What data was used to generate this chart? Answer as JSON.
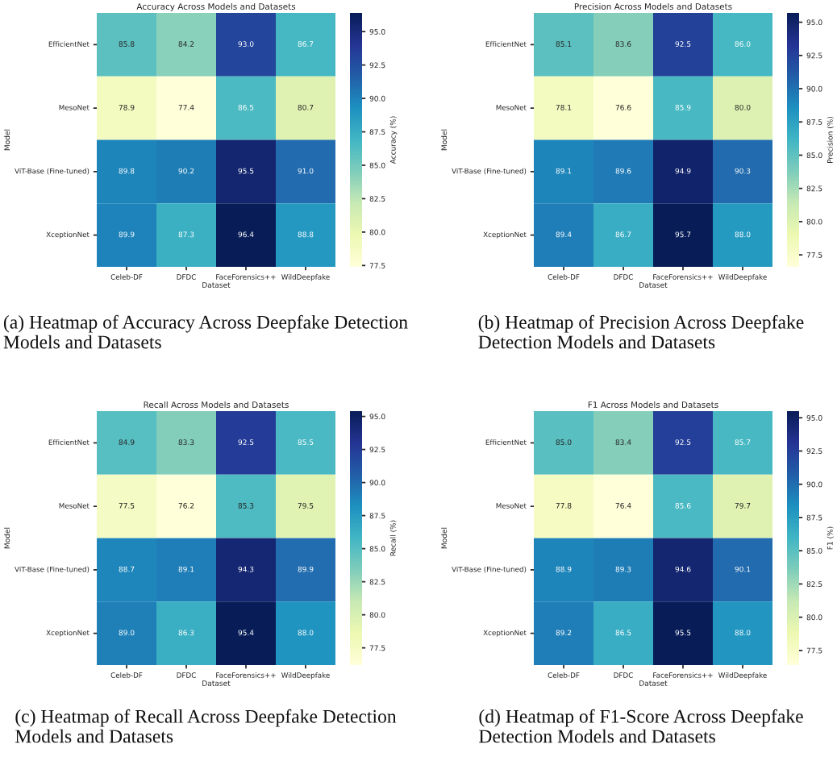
{
  "chart_data": [
    {
      "type": "heatmap",
      "title": "Accuracy Across Models and Datasets",
      "xlabel": "Dataset",
      "ylabel": "Model",
      "clabel": "Accuracy (%)",
      "categories": [
        "Celeb-DF",
        "DFDC",
        "FaceForensics++",
        "WildDeepfake"
      ],
      "y_categories": [
        "EfficientNet",
        "MesoNet",
        "ViT-Base (Fine-tuned)",
        "XceptionNet"
      ],
      "cells": [
        [
          85.8,
          84.2,
          93.0,
          86.7
        ],
        [
          78.9,
          77.4,
          86.5,
          80.7
        ],
        [
          89.8,
          90.2,
          95.5,
          91.0
        ],
        [
          89.9,
          87.3,
          96.4,
          88.8
        ]
      ],
      "cell_labels": [
        [
          "85.8",
          "84.2",
          "93.0",
          "86.7"
        ],
        [
          "78.9",
          "77.4",
          "86.5",
          "80.7"
        ],
        [
          "89.8",
          "90.2",
          "95.5",
          "91.0"
        ],
        [
          "89.9",
          "87.3",
          "96.4",
          "88.8"
        ]
      ],
      "clim": [
        77.4,
        96.4
      ],
      "cticks": [
        77.5,
        {
          "value": 80,
          "label": "80.0"
        },
        82.5,
        {
          "value": 85,
          "label": "85.0"
        },
        87.5,
        {
          "value": 90,
          "label": "90.0"
        },
        92.5,
        {
          "value": 95,
          "label": "95.0"
        }
      ],
      "data_labels": true,
      "annotations": [
        "(a) Heatmap of Accuracy Across Deepfake Detection Models and Datasets"
      ]
    },
    {
      "type": "heatmap",
      "title": "Precision Across Models and Datasets",
      "xlabel": "Dataset",
      "ylabel": "Model",
      "clabel": "Precision (%)",
      "categories": [
        "Celeb-DF",
        "DFDC",
        "FaceForensics++",
        "WildDeepfake"
      ],
      "y_categories": [
        "EfficientNet",
        "MesoNet",
        "ViT-Base (Fine-tuned)",
        "XceptionNet"
      ],
      "cells": [
        [
          85.1,
          83.6,
          92.5,
          86.0
        ],
        [
          78.1,
          76.6,
          85.9,
          80.0
        ],
        [
          89.1,
          89.6,
          94.9,
          90.3
        ],
        [
          89.4,
          86.7,
          95.7,
          88.0
        ]
      ],
      "cell_labels": [
        [
          "85.1",
          "83.6",
          "92.5",
          "86.0"
        ],
        [
          "78.1",
          "76.6",
          "85.9",
          "80.0"
        ],
        [
          "89.1",
          "89.6",
          "94.9",
          "90.3"
        ],
        [
          "89.4",
          "86.7",
          "95.7",
          "88.0"
        ]
      ],
      "clim": [
        76.6,
        95.7
      ],
      "cticks": [
        77.5,
        {
          "value": 80,
          "label": "80.0"
        },
        82.5,
        {
          "value": 85,
          "label": "85.0"
        },
        87.5,
        {
          "value": 90,
          "label": "90.0"
        },
        92.5,
        {
          "value": 95,
          "label": "95.0"
        }
      ],
      "data_labels": true,
      "annotations": [
        "(b) Heatmap of Precision Across Deepfake Detection Models and Datasets"
      ]
    },
    {
      "type": "heatmap",
      "title": "Recall Across Models and Datasets",
      "xlabel": "Dataset",
      "ylabel": "Model",
      "clabel": "Recall (%)",
      "categories": [
        "Celeb-DF",
        "DFDC",
        "FaceForensics++",
        "WildDeepfake"
      ],
      "y_categories": [
        "EfficientNet",
        "MesoNet",
        "ViT-Base (Fine-tuned)",
        "XceptionNet"
      ],
      "cells": [
        [
          84.9,
          83.3,
          92.5,
          85.5
        ],
        [
          77.5,
          76.2,
          85.3,
          79.5
        ],
        [
          88.7,
          89.1,
          94.3,
          89.9
        ],
        [
          89.0,
          86.3,
          95.4,
          88.0
        ]
      ],
      "cell_labels": [
        [
          "84.9",
          "83.3",
          "92.5",
          "85.5"
        ],
        [
          "77.5",
          "76.2",
          "85.3",
          "79.5"
        ],
        [
          "88.7",
          "89.1",
          "94.3",
          "89.9"
        ],
        [
          "89.0",
          "86.3",
          "95.4",
          "88.0"
        ]
      ],
      "clim": [
        76.2,
        95.4
      ],
      "cticks": [
        77.5,
        {
          "value": 80,
          "label": "80.0"
        },
        82.5,
        {
          "value": 85,
          "label": "85.0"
        },
        87.5,
        {
          "value": 90,
          "label": "90.0"
        },
        92.5,
        {
          "value": 95,
          "label": "95.0"
        }
      ],
      "data_labels": true,
      "annotations": [
        "(c) Heatmap of Recall Across Deepfake Detection Models and Datasets"
      ]
    },
    {
      "type": "heatmap",
      "title": "F1 Across Models and Datasets",
      "xlabel": "Dataset",
      "ylabel": "Model",
      "clabel": "F1 (%)",
      "categories": [
        "Celeb-DF",
        "DFDC",
        "FaceForensics++",
        "WildDeepfake"
      ],
      "y_categories": [
        "EfficientNet",
        "MesoNet",
        "ViT-Base (Fine-tuned)",
        "XceptionNet"
      ],
      "cells": [
        [
          85.0,
          83.4,
          92.5,
          85.7
        ],
        [
          77.8,
          76.4,
          85.6,
          79.7
        ],
        [
          88.9,
          89.3,
          94.6,
          90.1
        ],
        [
          89.2,
          86.5,
          95.5,
          88.0
        ]
      ],
      "cell_labels": [
        [
          "85.0",
          "83.4",
          "92.5",
          "85.7"
        ],
        [
          "77.8",
          "76.4",
          "85.6",
          "79.7"
        ],
        [
          "88.9",
          "89.3",
          "94.6",
          "90.1"
        ],
        [
          "89.2",
          "86.5",
          "95.5",
          "88.0"
        ]
      ],
      "clim": [
        76.4,
        95.5
      ],
      "cticks": [
        77.5,
        {
          "value": 80,
          "label": "80.0"
        },
        82.5,
        {
          "value": 85,
          "label": "85.0"
        },
        87.5,
        {
          "value": 90,
          "label": "90.0"
        },
        92.5,
        {
          "value": 95,
          "label": "95.0"
        }
      ],
      "data_labels": true,
      "annotations": [
        "(d) Heatmap of F1-Score Across Deepfake Detection Models and Datasets"
      ]
    }
  ]
}
